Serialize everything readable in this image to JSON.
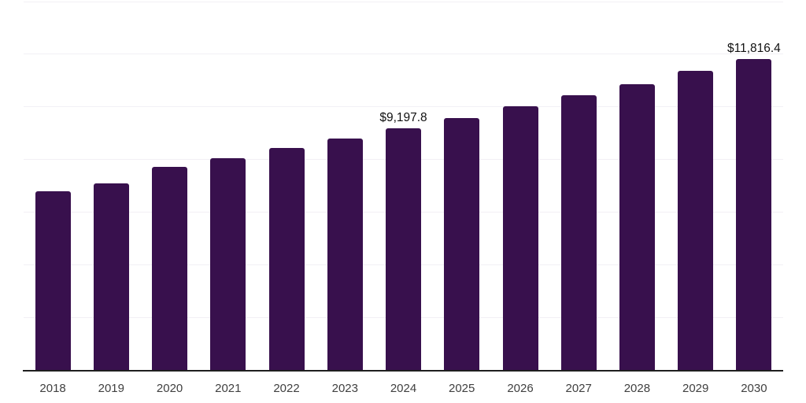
{
  "chart_data": {
    "type": "bar",
    "title": "",
    "xlabel": "",
    "ylabel": "",
    "categories": [
      "2018",
      "2019",
      "2020",
      "2021",
      "2022",
      "2023",
      "2024",
      "2025",
      "2026",
      "2027",
      "2028",
      "2029",
      "2030"
    ],
    "values": [
      6810,
      7110,
      7730,
      8060,
      8450,
      8810,
      9197.8,
      9590,
      10030,
      10450,
      10870,
      11380,
      11816.4
    ],
    "data_labels": [
      null,
      null,
      null,
      null,
      null,
      null,
      "$9,197.8",
      null,
      null,
      null,
      null,
      null,
      "$11,816.4"
    ],
    "ylim": [
      0,
      14000
    ],
    "grid_interval": 2000,
    "grid": true,
    "legend": "none",
    "y_tick_labels_shown": false,
    "colors": {
      "bar": "#38104D",
      "gridline": "#f2f0f5",
      "axis": "#1f1f1f",
      "tick_label": "#404040",
      "data_label": "#111111",
      "background": "#ffffff"
    }
  }
}
